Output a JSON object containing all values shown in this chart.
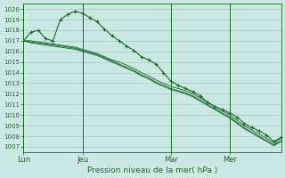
{
  "title": "Pression niveau de la mer( hPa )",
  "background_color": "#cce8e4",
  "grid_color": "#a8ccc4",
  "line_color": "#1a6b2a",
  "ylim": [
    1006.5,
    1020.5
  ],
  "yticks": [
    1007,
    1008,
    1009,
    1010,
    1011,
    1012,
    1013,
    1014,
    1015,
    1016,
    1017,
    1018,
    1019,
    1020
  ],
  "xtick_labels": [
    "Lun",
    "Jeu",
    "Mar",
    "Mer"
  ],
  "xtick_positions": [
    0,
    8,
    20,
    28
  ],
  "vline_positions": [
    0,
    8,
    20,
    28
  ],
  "total_points": 36,
  "figsize": [
    3.2,
    2.0
  ],
  "dpi": 100,
  "series_main": [
    1017.0,
    1017.8,
    1018.0,
    1017.2,
    1017.0,
    1019.0,
    1019.5,
    1019.8,
    1019.6,
    1019.2,
    1018.8,
    1018.1,
    1017.5,
    1017.0,
    1016.5,
    1016.1,
    1015.5,
    1015.2,
    1014.8,
    1014.0,
    1013.2,
    1012.8,
    1012.5,
    1012.2,
    1011.8,
    1011.2,
    1010.8,
    1010.5,
    1010.2,
    1009.8,
    1009.2,
    1008.8,
    1008.5,
    1008.1,
    1007.5,
    1007.9
  ],
  "series2": [
    1017.0,
    1017.0,
    1016.9,
    1016.8,
    1016.7,
    1016.6,
    1016.5,
    1016.4,
    1016.2,
    1016.0,
    1015.8,
    1015.5,
    1015.2,
    1015.0,
    1014.7,
    1014.4,
    1014.0,
    1013.7,
    1013.3,
    1013.0,
    1012.7,
    1012.5,
    1012.3,
    1012.0,
    1011.6,
    1011.2,
    1010.8,
    1010.4,
    1010.0,
    1009.5,
    1009.0,
    1008.6,
    1008.2,
    1007.8,
    1007.4,
    1007.8
  ],
  "series3": [
    1017.0,
    1016.9,
    1016.8,
    1016.7,
    1016.6,
    1016.5,
    1016.4,
    1016.3,
    1016.1,
    1015.9,
    1015.7,
    1015.4,
    1015.1,
    1014.8,
    1014.5,
    1014.2,
    1013.8,
    1013.5,
    1013.1,
    1012.8,
    1012.5,
    1012.3,
    1012.1,
    1011.8,
    1011.4,
    1011.0,
    1010.6,
    1010.2,
    1009.8,
    1009.3,
    1008.8,
    1008.4,
    1008.0,
    1007.6,
    1007.2,
    1007.6
  ],
  "series4": [
    1017.0,
    1016.8,
    1016.7,
    1016.6,
    1016.5,
    1016.4,
    1016.3,
    1016.2,
    1016.0,
    1015.8,
    1015.6,
    1015.3,
    1015.0,
    1014.7,
    1014.4,
    1014.1,
    1013.7,
    1013.4,
    1013.0,
    1012.7,
    1012.4,
    1012.2,
    1012.0,
    1011.7,
    1011.3,
    1010.9,
    1010.5,
    1010.1,
    1009.7,
    1009.2,
    1008.7,
    1008.3,
    1007.9,
    1007.5,
    1007.1,
    1007.5
  ]
}
